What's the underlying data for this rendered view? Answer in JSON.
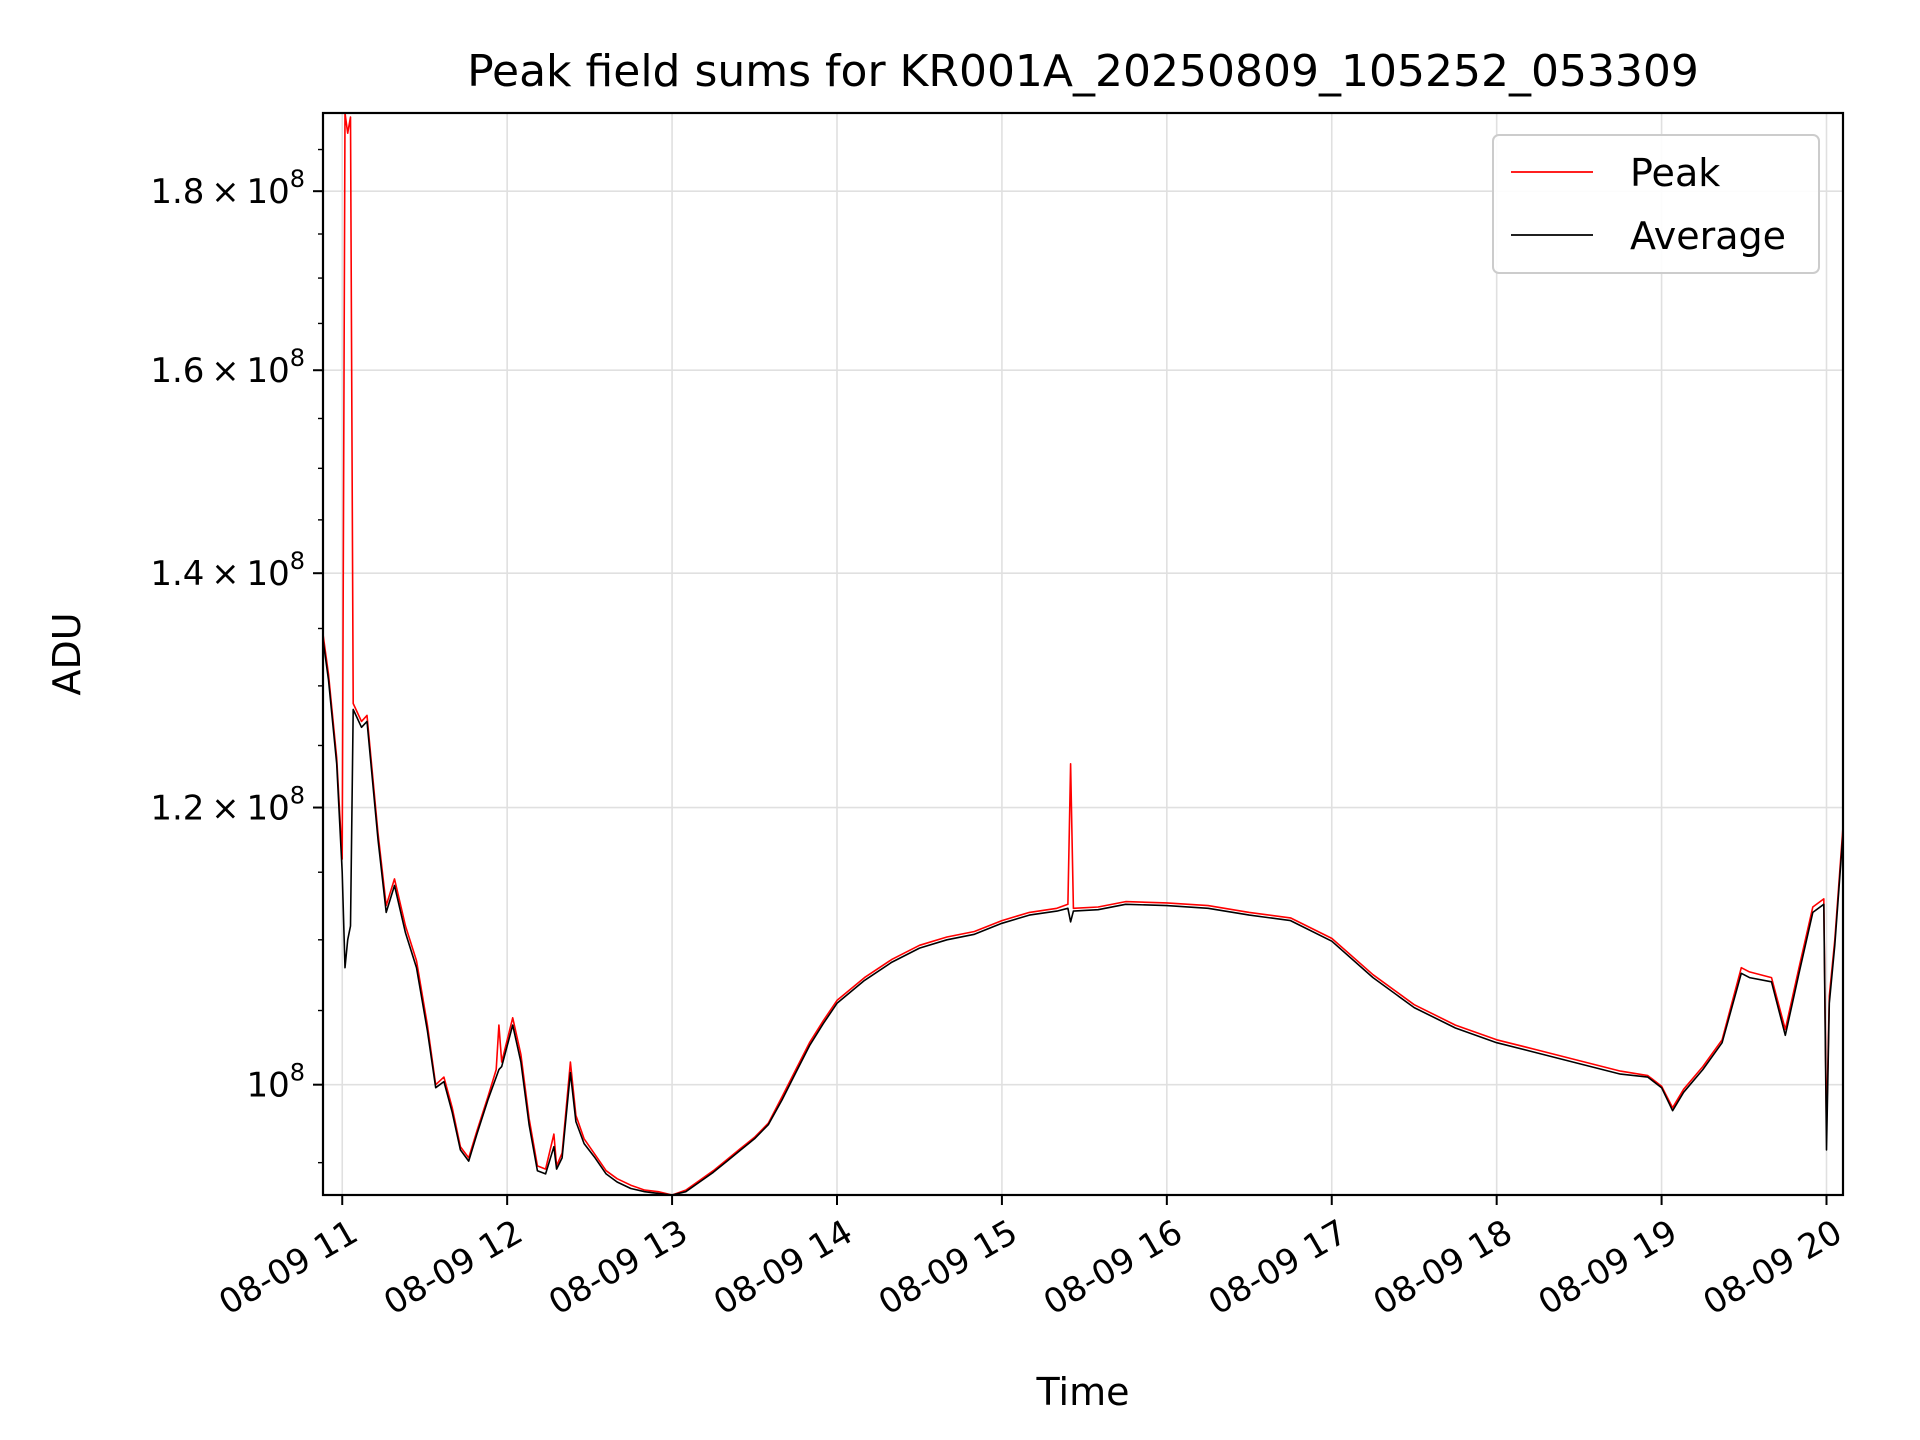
{
  "chart_data": {
    "type": "line",
    "title": "Peak field sums for KR001A_20250809_105252_053309",
    "xlabel": "Time",
    "ylabel": "ADU",
    "yscale": "log",
    "grid": true,
    "legend_position": "top-right",
    "xlim": [
      "2025-08-09 10:53",
      "2025-08-09 20:06"
    ],
    "ylim": [
      93000000,
      189500000
    ],
    "x_ticks": [
      {
        "t": "2025-08-09 11:00",
        "label": "08-09 11"
      },
      {
        "t": "2025-08-09 12:00",
        "label": "08-09 12"
      },
      {
        "t": "2025-08-09 13:00",
        "label": "08-09 13"
      },
      {
        "t": "2025-08-09 14:00",
        "label": "08-09 14"
      },
      {
        "t": "2025-08-09 15:00",
        "label": "08-09 15"
      },
      {
        "t": "2025-08-09 16:00",
        "label": "08-09 16"
      },
      {
        "t": "2025-08-09 17:00",
        "label": "08-09 17"
      },
      {
        "t": "2025-08-09 18:00",
        "label": "08-09 18"
      },
      {
        "t": "2025-08-09 19:00",
        "label": "08-09 19"
      },
      {
        "t": "2025-08-09 20:00",
        "label": "08-09 20"
      }
    ],
    "y_ticks": [
      {
        "value": 100000000,
        "mant": "",
        "exp": "8"
      },
      {
        "value": 120000000,
        "mant": "1.2",
        "exp": "8"
      },
      {
        "value": 140000000,
        "mant": "1.4",
        "exp": "8"
      },
      {
        "value": 160000000,
        "mant": "1.6",
        "exp": "8"
      },
      {
        "value": 180000000,
        "mant": "1.8",
        "exp": "8"
      }
    ],
    "series": [
      {
        "name": "Peak",
        "color": "#ff0000",
        "points": [
          [
            "2025-08-09 10:53",
            134500000
          ],
          [
            "2025-08-09 10:55",
            131000000
          ],
          [
            "2025-08-09 10:58",
            124000000
          ],
          [
            "2025-08-09 11:00",
            116000000
          ],
          [
            "2025-08-09 11:01",
            189500000
          ],
          [
            "2025-08-09 11:02",
            187000000
          ],
          [
            "2025-08-09 11:03",
            189000000
          ],
          [
            "2025-08-09 11:04",
            128500000
          ],
          [
            "2025-08-09 11:07",
            127000000
          ],
          [
            "2025-08-09 11:09",
            127500000
          ],
          [
            "2025-08-09 11:13",
            118000000
          ],
          [
            "2025-08-09 11:16",
            112500000
          ],
          [
            "2025-08-09 11:19",
            114500000
          ],
          [
            "2025-08-09 11:23",
            111000000
          ],
          [
            "2025-08-09 11:27",
            108500000
          ],
          [
            "2025-08-09 11:31",
            104000000
          ],
          [
            "2025-08-09 11:34",
            100000000
          ],
          [
            "2025-08-09 11:37",
            100500000
          ],
          [
            "2025-08-09 11:40",
            98500000
          ],
          [
            "2025-08-09 11:43",
            96000000
          ],
          [
            "2025-08-09 11:46",
            95300000
          ],
          [
            "2025-08-09 11:49",
            97000000
          ],
          [
            "2025-08-09 11:53",
            99200000
          ],
          [
            "2025-08-09 11:56",
            101000000
          ],
          [
            "2025-08-09 11:57",
            104000000
          ],
          [
            "2025-08-09 11:58",
            101500000
          ],
          [
            "2025-08-09 12:02",
            104500000
          ],
          [
            "2025-08-09 12:05",
            102000000
          ],
          [
            "2025-08-09 12:08",
            97800000
          ],
          [
            "2025-08-09 12:11",
            94800000
          ],
          [
            "2025-08-09 12:14",
            94600000
          ],
          [
            "2025-08-09 12:17",
            96800000
          ],
          [
            "2025-08-09 12:18",
            94800000
          ],
          [
            "2025-08-09 12:20",
            95600000
          ],
          [
            "2025-08-09 12:23",
            101500000
          ],
          [
            "2025-08-09 12:25",
            98000000
          ],
          [
            "2025-08-09 12:28",
            96500000
          ],
          [
            "2025-08-09 12:32",
            95500000
          ],
          [
            "2025-08-09 12:36",
            94500000
          ],
          [
            "2025-08-09 12:40",
            94000000
          ],
          [
            "2025-08-09 12:45",
            93600000
          ],
          [
            "2025-08-09 12:50",
            93300000
          ],
          [
            "2025-08-09 12:55",
            93200000
          ],
          [
            "2025-08-09 13:00",
            93000000
          ],
          [
            "2025-08-09 13:05",
            93300000
          ],
          [
            "2025-08-09 13:10",
            93900000
          ],
          [
            "2025-08-09 13:15",
            94500000
          ],
          [
            "2025-08-09 13:20",
            95200000
          ],
          [
            "2025-08-09 13:25",
            95900000
          ],
          [
            "2025-08-09 13:30",
            96600000
          ],
          [
            "2025-08-09 13:35",
            97500000
          ],
          [
            "2025-08-09 13:40",
            99200000
          ],
          [
            "2025-08-09 13:45",
            101000000
          ],
          [
            "2025-08-09 13:50",
            102800000
          ],
          [
            "2025-08-09 13:55",
            104300000
          ],
          [
            "2025-08-09 14:00",
            105700000
          ],
          [
            "2025-08-09 14:10",
            107300000
          ],
          [
            "2025-08-09 14:20",
            108600000
          ],
          [
            "2025-08-09 14:30",
            109600000
          ],
          [
            "2025-08-09 14:40",
            110200000
          ],
          [
            "2025-08-09 14:50",
            110600000
          ],
          [
            "2025-08-09 15:00",
            111400000
          ],
          [
            "2025-08-09 15:10",
            112000000
          ],
          [
            "2025-08-09 15:20",
            112300000
          ],
          [
            "2025-08-09 15:24",
            112600000
          ],
          [
            "2025-08-09 15:25",
            123500000
          ],
          [
            "2025-08-09 15:26",
            112300000
          ],
          [
            "2025-08-09 15:35",
            112400000
          ],
          [
            "2025-08-09 15:45",
            112800000
          ],
          [
            "2025-08-09 16:00",
            112700000
          ],
          [
            "2025-08-09 16:15",
            112500000
          ],
          [
            "2025-08-09 16:30",
            112000000
          ],
          [
            "2025-08-09 16:45",
            111600000
          ],
          [
            "2025-08-09 17:00",
            110100000
          ],
          [
            "2025-08-09 17:15",
            107500000
          ],
          [
            "2025-08-09 17:30",
            105400000
          ],
          [
            "2025-08-09 17:45",
            104000000
          ],
          [
            "2025-08-09 18:00",
            103000000
          ],
          [
            "2025-08-09 18:15",
            102300000
          ],
          [
            "2025-08-09 18:30",
            101600000
          ],
          [
            "2025-08-09 18:45",
            100900000
          ],
          [
            "2025-08-09 18:55",
            100600000
          ],
          [
            "2025-08-09 19:00",
            99900000
          ],
          [
            "2025-08-09 19:04",
            98500000
          ],
          [
            "2025-08-09 19:08",
            99700000
          ],
          [
            "2025-08-09 19:15",
            101200000
          ],
          [
            "2025-08-09 19:22",
            103000000
          ],
          [
            "2025-08-09 19:29",
            108000000
          ],
          [
            "2025-08-09 19:32",
            107700000
          ],
          [
            "2025-08-09 19:40",
            107300000
          ],
          [
            "2025-08-09 19:45",
            103700000
          ],
          [
            "2025-08-09 19:50",
            108000000
          ],
          [
            "2025-08-09 19:55",
            112400000
          ],
          [
            "2025-08-09 19:59",
            113000000
          ],
          [
            "2025-08-09 20:00",
            97000000
          ],
          [
            "2025-08-09 20:01",
            106000000
          ],
          [
            "2025-08-09 20:03",
            110000000
          ],
          [
            "2025-08-09 20:06",
            118500000
          ]
        ]
      },
      {
        "name": "Average",
        "color": "#000000",
        "points": [
          [
            "2025-08-09 10:53",
            134000000
          ],
          [
            "2025-08-09 10:55",
            130500000
          ],
          [
            "2025-08-09 10:58",
            123500000
          ],
          [
            "2025-08-09 11:00",
            115000000
          ],
          [
            "2025-08-09 11:01",
            108000000
          ],
          [
            "2025-08-09 11:02",
            110000000
          ],
          [
            "2025-08-09 11:03",
            111000000
          ],
          [
            "2025-08-09 11:04",
            128000000
          ],
          [
            "2025-08-09 11:07",
            126500000
          ],
          [
            "2025-08-09 11:09",
            127000000
          ],
          [
            "2025-08-09 11:13",
            117500000
          ],
          [
            "2025-08-09 11:16",
            112000000
          ],
          [
            "2025-08-09 11:19",
            114000000
          ],
          [
            "2025-08-09 11:23",
            110500000
          ],
          [
            "2025-08-09 11:27",
            108000000
          ],
          [
            "2025-08-09 11:31",
            103600000
          ],
          [
            "2025-08-09 11:34",
            99800000
          ],
          [
            "2025-08-09 11:37",
            100200000
          ],
          [
            "2025-08-09 11:40",
            98200000
          ],
          [
            "2025-08-09 11:43",
            95800000
          ],
          [
            "2025-08-09 11:46",
            95100000
          ],
          [
            "2025-08-09 11:49",
            96800000
          ],
          [
            "2025-08-09 11:53",
            99000000
          ],
          [
            "2025-08-09 11:56",
            100500000
          ],
          [
            "2025-08-09 11:57",
            101000000
          ],
          [
            "2025-08-09 11:58",
            101200000
          ],
          [
            "2025-08-09 12:02",
            104000000
          ],
          [
            "2025-08-09 12:05",
            101500000
          ],
          [
            "2025-08-09 12:08",
            97400000
          ],
          [
            "2025-08-09 12:11",
            94500000
          ],
          [
            "2025-08-09 12:14",
            94300000
          ],
          [
            "2025-08-09 12:17",
            96000000
          ],
          [
            "2025-08-09 12:18",
            94600000
          ],
          [
            "2025-08-09 12:20",
            95300000
          ],
          [
            "2025-08-09 12:23",
            100800000
          ],
          [
            "2025-08-09 12:25",
            97600000
          ],
          [
            "2025-08-09 12:28",
            96200000
          ],
          [
            "2025-08-09 12:32",
            95300000
          ],
          [
            "2025-08-09 12:36",
            94300000
          ],
          [
            "2025-08-09 12:40",
            93800000
          ],
          [
            "2025-08-09 12:45",
            93400000
          ],
          [
            "2025-08-09 12:50",
            93200000
          ],
          [
            "2025-08-09 12:55",
            93100000
          ],
          [
            "2025-08-09 13:00",
            93000000
          ],
          [
            "2025-08-09 13:05",
            93200000
          ],
          [
            "2025-08-09 13:10",
            93800000
          ],
          [
            "2025-08-09 13:15",
            94400000
          ],
          [
            "2025-08-09 13:20",
            95100000
          ],
          [
            "2025-08-09 13:25",
            95800000
          ],
          [
            "2025-08-09 13:30",
            96500000
          ],
          [
            "2025-08-09 13:35",
            97400000
          ],
          [
            "2025-08-09 13:40",
            99000000
          ],
          [
            "2025-08-09 13:45",
            100800000
          ],
          [
            "2025-08-09 13:50",
            102600000
          ],
          [
            "2025-08-09 13:55",
            104100000
          ],
          [
            "2025-08-09 14:00",
            105500000
          ],
          [
            "2025-08-09 14:10",
            107100000
          ],
          [
            "2025-08-09 14:20",
            108400000
          ],
          [
            "2025-08-09 14:30",
            109400000
          ],
          [
            "2025-08-09 14:40",
            110000000
          ],
          [
            "2025-08-09 14:50",
            110400000
          ],
          [
            "2025-08-09 15:00",
            111200000
          ],
          [
            "2025-08-09 15:10",
            111800000
          ],
          [
            "2025-08-09 15:20",
            112100000
          ],
          [
            "2025-08-09 15:24",
            112300000
          ],
          [
            "2025-08-09 15:25",
            111300000
          ],
          [
            "2025-08-09 15:26",
            112100000
          ],
          [
            "2025-08-09 15:35",
            112200000
          ],
          [
            "2025-08-09 15:45",
            112600000
          ],
          [
            "2025-08-09 16:00",
            112500000
          ],
          [
            "2025-08-09 16:15",
            112300000
          ],
          [
            "2025-08-09 16:30",
            111800000
          ],
          [
            "2025-08-09 16:45",
            111400000
          ],
          [
            "2025-08-09 17:00",
            109900000
          ],
          [
            "2025-08-09 17:15",
            107300000
          ],
          [
            "2025-08-09 17:30",
            105200000
          ],
          [
            "2025-08-09 17:45",
            103800000
          ],
          [
            "2025-08-09 18:00",
            102800000
          ],
          [
            "2025-08-09 18:15",
            102100000
          ],
          [
            "2025-08-09 18:30",
            101400000
          ],
          [
            "2025-08-09 18:45",
            100700000
          ],
          [
            "2025-08-09 18:55",
            100500000
          ],
          [
            "2025-08-09 19:00",
            99800000
          ],
          [
            "2025-08-09 19:04",
            98300000
          ],
          [
            "2025-08-09 19:08",
            99500000
          ],
          [
            "2025-08-09 19:15",
            101000000
          ],
          [
            "2025-08-09 19:22",
            102800000
          ],
          [
            "2025-08-09 19:29",
            107600000
          ],
          [
            "2025-08-09 19:32",
            107300000
          ],
          [
            "2025-08-09 19:40",
            107000000
          ],
          [
            "2025-08-09 19:45",
            103300000
          ],
          [
            "2025-08-09 19:50",
            107600000
          ],
          [
            "2025-08-09 19:55",
            112000000
          ],
          [
            "2025-08-09 19:59",
            112600000
          ],
          [
            "2025-08-09 20:00",
            95800000
          ],
          [
            "2025-08-09 20:01",
            105500000
          ],
          [
            "2025-08-09 20:03",
            109600000
          ],
          [
            "2025-08-09 20:06",
            118000000
          ]
        ]
      }
    ]
  }
}
